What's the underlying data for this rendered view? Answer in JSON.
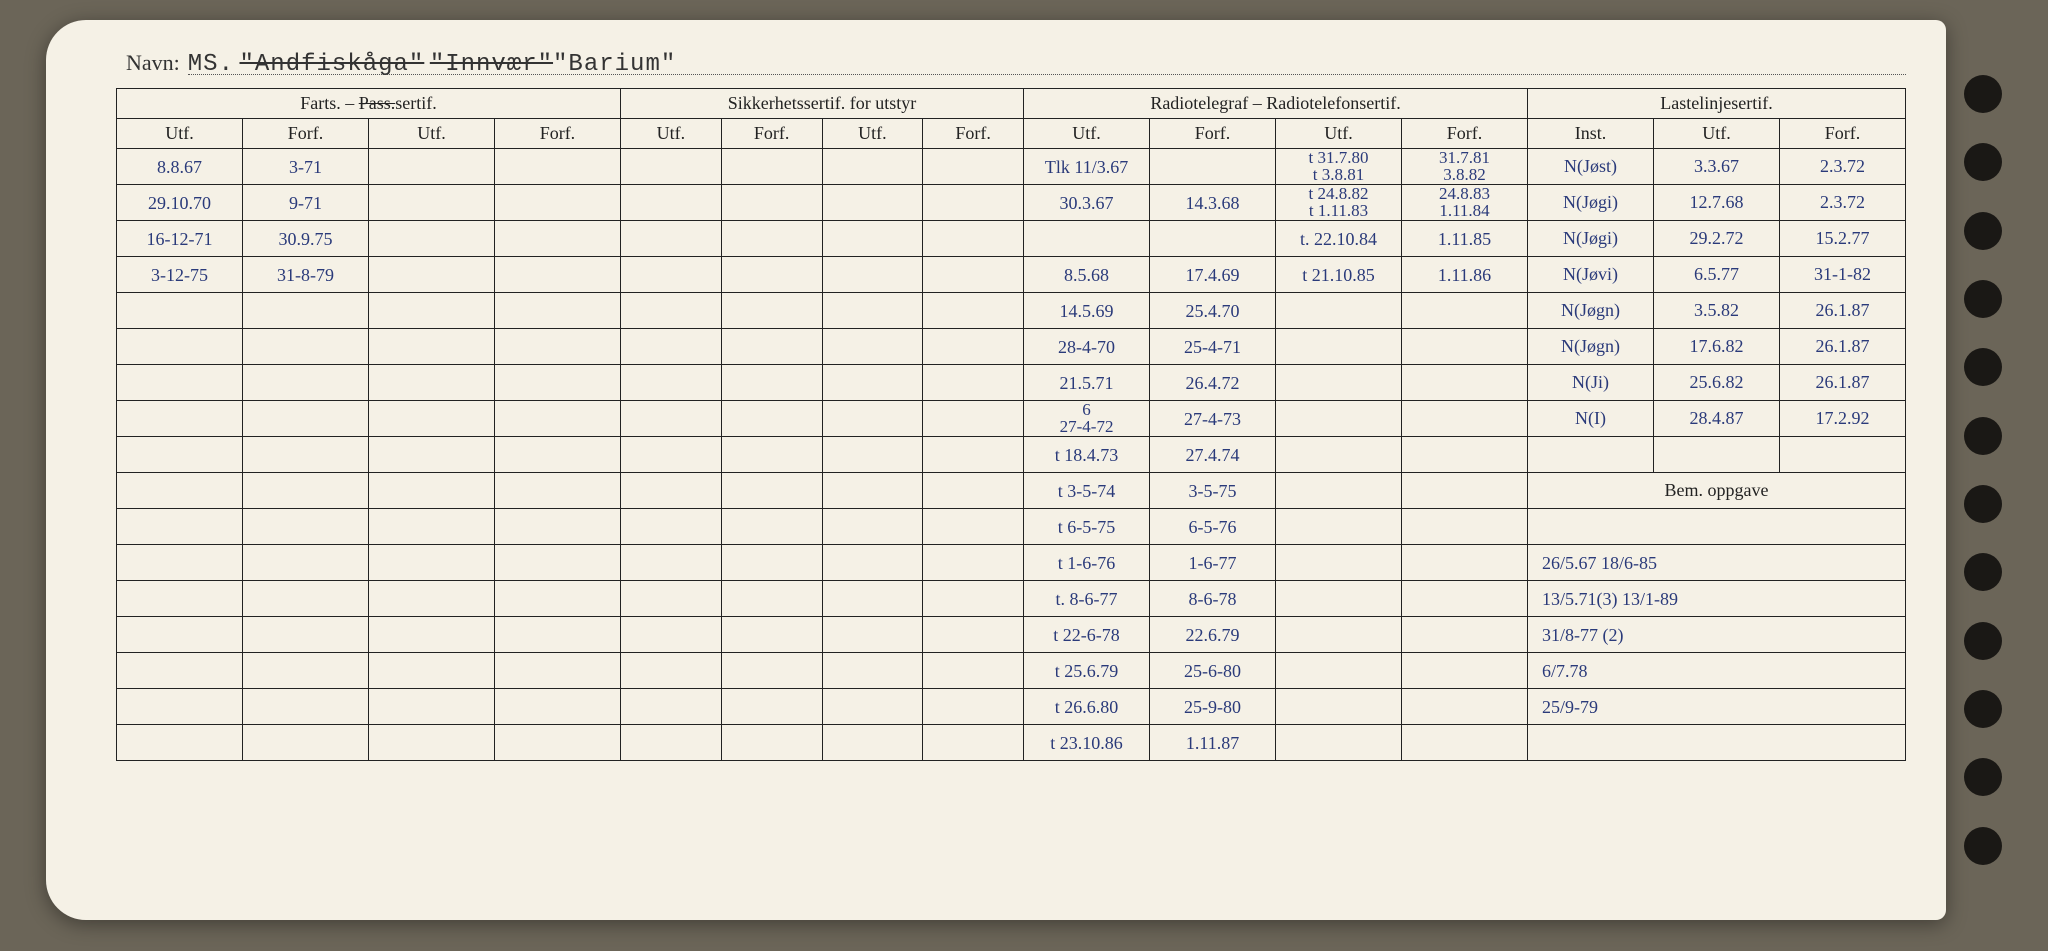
{
  "navn": {
    "label": "Navn:",
    "prefix": "MS.",
    "name1": "\"Andfiskåga\"",
    "name2_struck": "\"Innvær\"",
    "name3": "\"Barium\""
  },
  "headers": {
    "group1": "Farts. – Pass.sertif.",
    "group2": "Sikkerhetssertif. for utstyr",
    "group3": "Radiotelegraf – Radiotelefonsertif.",
    "group4": "Lastelinjesertif.",
    "utf": "Utf.",
    "forf": "Forf.",
    "inst": "Inst.",
    "bem": "Bem. oppgave"
  },
  "farts": [
    {
      "utf": "8.8.67",
      "forf": "3-71"
    },
    {
      "utf": "29.10.70",
      "forf": "9-71"
    },
    {
      "utf": "16-12-71",
      "forf": "30.9.75"
    },
    {
      "utf": "3-12-75",
      "forf": "31-8-79"
    }
  ],
  "radio": {
    "col1": [
      "Tlk 11/3.67",
      "30.3.67",
      "",
      "8.5.68",
      "14.5.69",
      "28-4-70",
      "21.5.71",
      "6  27-4-72",
      "t 18.4.73",
      "t 3-5-74",
      "t 6-5-75",
      "t 1-6-76",
      "t. 8-6-77",
      "t 22-6-78",
      "t 25.6.79",
      "t 26.6.80",
      "t 23.10.86"
    ],
    "col2": [
      "",
      "14.3.68",
      "",
      "17.4.69",
      "25.4.70",
      "25-4-71",
      "26.4.72",
      "27-4-73",
      "27.4.74",
      "3-5-75",
      "6-5-76",
      "1-6-77",
      "8-6-78",
      "22.6.79",
      "25-6-80",
      "25-9-80",
      "1.11.87"
    ],
    "col3": [
      "t 31.7.80  t 3.8.81",
      "t 24.8.82  t 1.11.83",
      "t. 22.10.84",
      "t 21.10.85",
      "",
      "",
      "",
      "",
      "",
      "",
      "",
      "",
      "",
      "",
      "",
      "",
      ""
    ],
    "col4": [
      "31.7.81  3.8.82",
      "24.8.83  1.11.84",
      "1.11.85",
      "1.11.86",
      "",
      "",
      "",
      "",
      "",
      "",
      "",
      "",
      "",
      "",
      "",
      "",
      ""
    ]
  },
  "laste": {
    "inst": [
      "N(Jøst)",
      "N(Jøgi)",
      "N(Jøgi)",
      "N(Jøvi)",
      "N(Jøgn)",
      "N(Jøgn)",
      "N(Ji)",
      "N(I)",
      ""
    ],
    "utf": [
      "3.3.67",
      "12.7.68",
      "29.2.72",
      "6.5.77",
      "3.5.82",
      "17.6.82",
      "25.6.82",
      "28.4.87",
      ""
    ],
    "forf": [
      "2.3.72",
      "2.3.72",
      "15.2.77",
      "31-1-82",
      "26.1.87",
      "26.1.87",
      "26.1.87",
      "17.2.92",
      ""
    ]
  },
  "bem_rows": [
    "26/5.67  18/6-85",
    "13/5.71(3)  13/1-89",
    "31/8-77 (2)",
    "6/7.78",
    "25/9-79"
  ],
  "colors": {
    "paper": "#f5f1e6",
    "ink": "#222",
    "handwriting": "#2a3a7a",
    "background": "#6b6558"
  }
}
